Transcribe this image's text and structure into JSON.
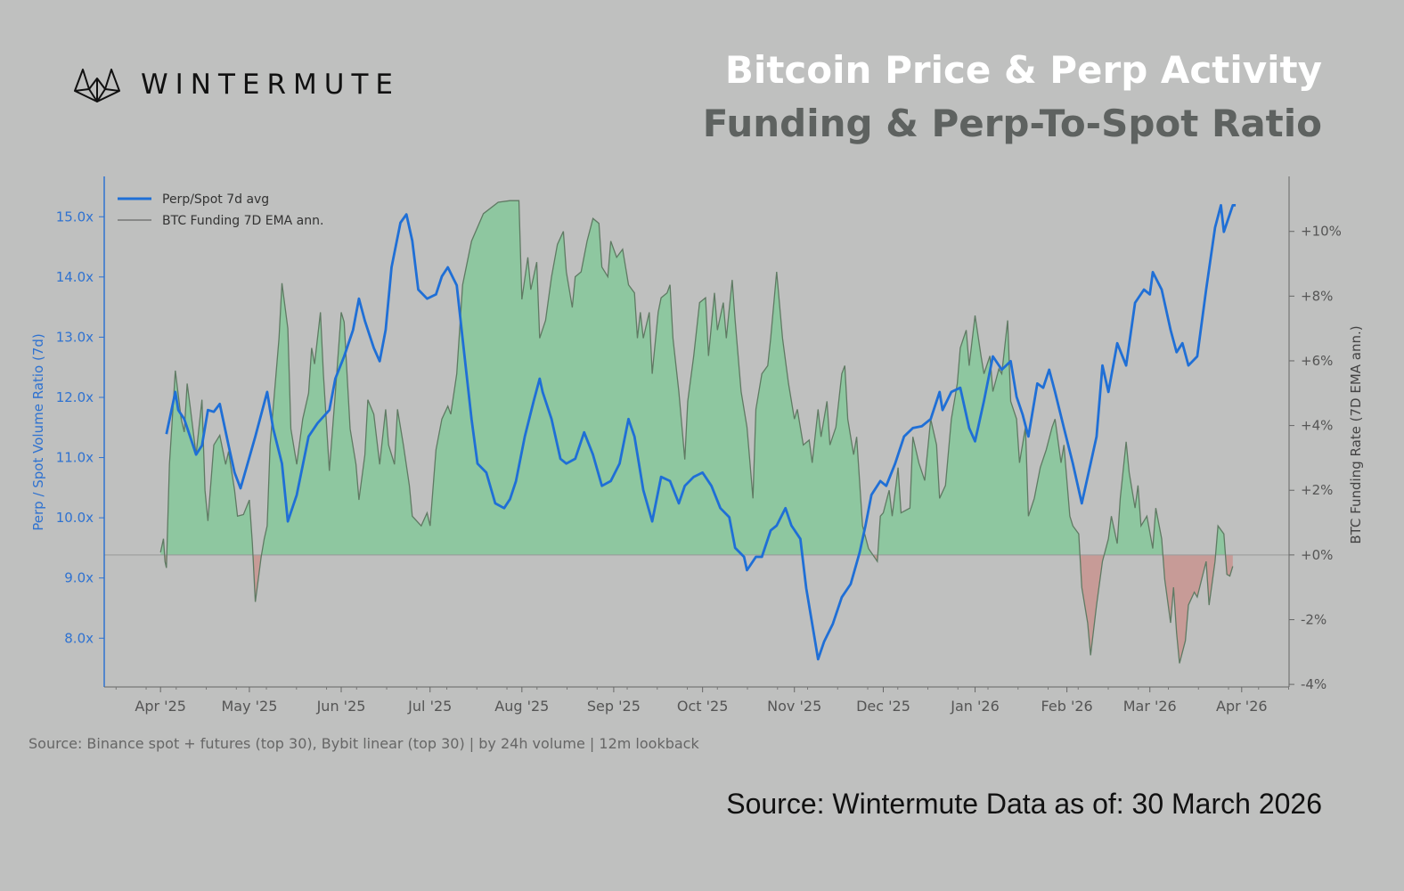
{
  "logo": {
    "text": "WINTERMUTE"
  },
  "header": {
    "title": "Bitcoin Price & Perp Activity",
    "subtitle": "Funding & Perp-To-Spot Ratio"
  },
  "note": "Source: Binance spot + futures (top 30), Bybit linear (top 30)  |  by 24h volume  |  12m lookback",
  "footer": "Source: Wintermute  Data as of: 30 March 2026",
  "colors": {
    "perp": "#1f6fd6",
    "funding_line": "#5f7a63",
    "pos_fill": "#8ec7a0",
    "neg_fill": "#c79b97",
    "background": "#bfc0bf"
  },
  "chart_data": {
    "type": "line",
    "x_unit": "days since 2025-04-01",
    "xlim": [
      -19,
      381
    ],
    "xticks": [
      {
        "day": 0,
        "label": "Apr '25"
      },
      {
        "day": 30,
        "label": "May '25"
      },
      {
        "day": 61,
        "label": "Jun '25"
      },
      {
        "day": 91,
        "label": "Jul '25"
      },
      {
        "day": 122,
        "label": "Aug '25"
      },
      {
        "day": 153,
        "label": "Sep '25"
      },
      {
        "day": 183,
        "label": "Oct '25"
      },
      {
        "day": 214,
        "label": "Nov '25"
      },
      {
        "day": 244,
        "label": "Dec '25"
      },
      {
        "day": 275,
        "label": "Jan '26"
      },
      {
        "day": 306,
        "label": "Feb '26"
      },
      {
        "day": 334,
        "label": "Mar '26"
      },
      {
        "day": 365,
        "label": "Apr '26"
      }
    ],
    "left_axis": {
      "label": "Perp / Spot Volume Ratio (7d)",
      "ylim": [
        7.19,
        15.67
      ],
      "ticks": [
        {
          "v": 8,
          "label": "8.0x"
        },
        {
          "v": 9,
          "label": "9.0x"
        },
        {
          "v": 10,
          "label": "10.0x"
        },
        {
          "v": 11,
          "label": "11.0x"
        },
        {
          "v": 12,
          "label": "12.0x"
        },
        {
          "v": 13,
          "label": "13.0x"
        },
        {
          "v": 14,
          "label": "14.0x"
        },
        {
          "v": 15,
          "label": "15.0x"
        }
      ]
    },
    "right_axis": {
      "label": "BTC Funding Rate (7D EMA ann.)",
      "ylim": [
        -4.08,
        11.7
      ],
      "ticks": [
        {
          "v": -4,
          "label": "-4%"
        },
        {
          "v": -2,
          "label": "-2%"
        },
        {
          "v": 0,
          "label": "+0%"
        },
        {
          "v": 2,
          "label": "+2%"
        },
        {
          "v": 4,
          "label": "+4%"
        },
        {
          "v": 6,
          "label": "+6%"
        },
        {
          "v": 8,
          "label": "+8%"
        },
        {
          "v": 10,
          "label": "+10%"
        }
      ]
    },
    "legend": {
      "placement": "top-left",
      "entries": [
        "Perp/Spot 7d avg",
        "BTC Funding 7D EMA ann."
      ]
    },
    "series": [
      {
        "name": "Perp/Spot 7d avg",
        "axis": "left",
        "x": [
          2,
          5,
          6,
          8,
          10,
          12,
          14,
          16,
          18,
          20,
          23,
          25,
          27,
          29,
          32,
          36,
          38,
          41,
          43,
          46,
          50,
          53,
          57,
          59,
          62,
          65,
          67,
          69,
          72,
          74,
          76,
          78,
          81,
          83,
          85,
          87,
          90,
          93,
          95,
          97,
          100,
          102,
          105,
          107,
          110,
          113,
          116,
          118,
          120,
          123,
          126,
          128,
          129,
          132,
          135,
          137,
          140,
          143,
          146,
          149,
          152,
          155,
          158,
          160,
          163,
          166,
          169,
          172,
          175,
          177,
          180,
          183,
          186,
          189,
          192,
          194,
          197,
          198,
          201,
          203,
          206,
          208,
          211,
          213,
          216,
          218,
          220,
          222,
          224,
          227,
          230,
          233,
          236,
          238,
          240,
          243,
          245,
          248,
          251,
          254,
          257,
          260,
          263,
          264,
          267,
          270,
          273,
          275,
          278,
          281,
          284,
          287,
          289,
          291,
          293,
          296,
          298,
          300,
          302,
          305,
          308,
          311,
          314,
          316,
          318,
          320,
          323,
          326,
          329,
          332,
          334,
          335,
          338,
          341,
          343,
          345,
          347,
          350,
          353,
          356,
          358,
          359,
          362,
          363
        ],
        "y": [
          11.39,
          12.09,
          11.79,
          11.64,
          11.35,
          11.05,
          11.2,
          11.79,
          11.76,
          11.89,
          11.2,
          10.75,
          10.49,
          10.83,
          11.35,
          12.09,
          11.49,
          10.9,
          9.94,
          10.38,
          11.35,
          11.57,
          11.79,
          12.31,
          12.68,
          13.12,
          13.64,
          13.27,
          12.82,
          12.6,
          13.12,
          14.16,
          14.9,
          15.04,
          14.6,
          13.79,
          13.64,
          13.71,
          14.01,
          14.16,
          13.86,
          12.97,
          11.64,
          10.9,
          10.75,
          10.24,
          10.16,
          10.31,
          10.61,
          11.35,
          11.94,
          12.31,
          12.09,
          11.64,
          10.98,
          10.9,
          10.98,
          11.42,
          11.05,
          10.53,
          10.61,
          10.9,
          11.64,
          11.35,
          10.46,
          9.94,
          10.68,
          10.61,
          10.24,
          10.53,
          10.68,
          10.75,
          10.53,
          10.16,
          10.01,
          9.5,
          9.35,
          9.13,
          9.35,
          9.35,
          9.79,
          9.87,
          10.16,
          9.87,
          9.65,
          8.83,
          8.24,
          7.65,
          7.94,
          8.24,
          8.68,
          8.9,
          9.42,
          9.87,
          10.38,
          10.61,
          10.53,
          10.9,
          11.35,
          11.49,
          11.52,
          11.64,
          12.09,
          11.79,
          12.09,
          12.16,
          11.49,
          11.27,
          11.94,
          12.68,
          12.46,
          12.6,
          12.01,
          11.72,
          11.35,
          12.23,
          12.16,
          12.46,
          12.09,
          11.49,
          10.9,
          10.24,
          10.9,
          11.35,
          12.53,
          12.09,
          12.9,
          12.53,
          13.57,
          13.79,
          13.71,
          14.08,
          13.79,
          13.12,
          12.75,
          12.9,
          12.53,
          12.68,
          13.79,
          14.82,
          15.19,
          14.75,
          15.19,
          15.19
        ]
      },
      {
        "name": "BTC Funding 7D EMA ann.",
        "axis": "right",
        "x": [
          0,
          1,
          1.5,
          2,
          3,
          5,
          7,
          8,
          9,
          10,
          12,
          14,
          15,
          16,
          18,
          20,
          22,
          23,
          25,
          26,
          28,
          30,
          31,
          32,
          34,
          35,
          36,
          37,
          40,
          41,
          43,
          44,
          46,
          48,
          50,
          51,
          52,
          54,
          55,
          57,
          59,
          61,
          62,
          64,
          66,
          67,
          69,
          70,
          72,
          74,
          76,
          77,
          79,
          80,
          82,
          84,
          85,
          88,
          90,
          91,
          93,
          95,
          97,
          98,
          100,
          102,
          105,
          109,
          114,
          118,
          121,
          122,
          124,
          125,
          127,
          128,
          130,
          132,
          134,
          136,
          137,
          139,
          140,
          142,
          144,
          146,
          148,
          149,
          151,
          152,
          154,
          156,
          158,
          160,
          161,
          162,
          163,
          165,
          166,
          168,
          169,
          171,
          172,
          173,
          175,
          177,
          178,
          180,
          182,
          184,
          185,
          187,
          188,
          190,
          191,
          193,
          194,
          196,
          198,
          200,
          201,
          203,
          205,
          206,
          208,
          210,
          212,
          214,
          215,
          217,
          219,
          220,
          222,
          223,
          225,
          226,
          228,
          230,
          231,
          232,
          234,
          235,
          237,
          239,
          242,
          243,
          244,
          246,
          247,
          249,
          250,
          253,
          254,
          256,
          258,
          260,
          262,
          263,
          265,
          267,
          269,
          270,
          272,
          273,
          275,
          277,
          278,
          280,
          281,
          283,
          284,
          286,
          287,
          289,
          290,
          292,
          293,
          295,
          297,
          299,
          301,
          302,
          304,
          305,
          307,
          308,
          310,
          311,
          313,
          314,
          316,
          318,
          320,
          321,
          323,
          324,
          326,
          327,
          329,
          330,
          331,
          333,
          335,
          336,
          338,
          339,
          341,
          342,
          343,
          344,
          346,
          347,
          349,
          350,
          353,
          354,
          356,
          357,
          359,
          360,
          361,
          362
        ],
        "y": [
          0.08,
          0.5,
          -0.2,
          -0.4,
          2.8,
          5.7,
          4.2,
          3.8,
          5.3,
          4.6,
          3.1,
          4.8,
          2.0,
          1.05,
          3.4,
          3.7,
          2.8,
          3.2,
          2.0,
          1.2,
          1.25,
          1.7,
          0.35,
          -1.45,
          -0.05,
          0.5,
          0.9,
          3.4,
          6.7,
          8.4,
          7.0,
          3.9,
          2.8,
          4.2,
          5.0,
          6.4,
          5.9,
          7.5,
          5.6,
          2.6,
          5.0,
          7.5,
          7.2,
          3.9,
          2.8,
          1.7,
          3.1,
          4.8,
          4.35,
          2.8,
          4.5,
          3.4,
          2.8,
          4.5,
          3.4,
          2.15,
          1.2,
          0.9,
          1.3,
          0.9,
          3.25,
          4.2,
          4.6,
          4.35,
          5.6,
          8.35,
          9.7,
          10.55,
          10.9,
          10.95,
          10.95,
          7.9,
          9.2,
          8.2,
          9.05,
          6.7,
          7.25,
          8.6,
          9.6,
          10.0,
          8.75,
          7.65,
          8.6,
          8.75,
          9.7,
          10.4,
          10.25,
          8.9,
          8.6,
          9.7,
          9.2,
          9.45,
          8.35,
          8.1,
          6.7,
          7.5,
          6.7,
          7.5,
          5.6,
          7.5,
          7.95,
          8.1,
          8.35,
          6.7,
          5.05,
          2.95,
          4.75,
          6.15,
          7.8,
          7.95,
          6.15,
          8.1,
          6.95,
          7.8,
          6.7,
          8.5,
          7.25,
          5.05,
          3.95,
          1.75,
          4.5,
          5.6,
          5.85,
          6.7,
          8.75,
          6.7,
          5.3,
          4.2,
          4.5,
          3.4,
          3.55,
          2.85,
          4.5,
          3.65,
          4.75,
          3.4,
          3.95,
          5.6,
          5.85,
          4.2,
          3.1,
          3.65,
          0.9,
          0.2,
          -0.2,
          1.2,
          1.3,
          2.0,
          1.2,
          2.7,
          1.3,
          1.45,
          3.65,
          2.85,
          2.3,
          4.2,
          3.4,
          1.75,
          2.15,
          4.2,
          5.3,
          6.4,
          6.95,
          5.85,
          7.4,
          6.15,
          5.6,
          6.15,
          5.05,
          5.75,
          5.6,
          7.25,
          4.75,
          4.2,
          2.85,
          3.95,
          1.2,
          1.75,
          2.7,
          3.25,
          3.95,
          4.2,
          2.85,
          3.4,
          1.2,
          0.9,
          0.65,
          -1.0,
          -2.1,
          -3.1,
          -1.55,
          -0.2,
          0.5,
          1.2,
          0.35,
          1.75,
          3.5,
          2.55,
          1.45,
          2.15,
          0.9,
          1.2,
          0.2,
          1.45,
          0.5,
          -0.75,
          -2.1,
          -1.0,
          -2.4,
          -3.35,
          -2.65,
          -1.55,
          -1.15,
          -1.3,
          -0.2,
          -1.55,
          -0.2,
          0.9,
          0.65,
          -0.6,
          -0.65,
          -0.35
        ]
      }
    ]
  }
}
